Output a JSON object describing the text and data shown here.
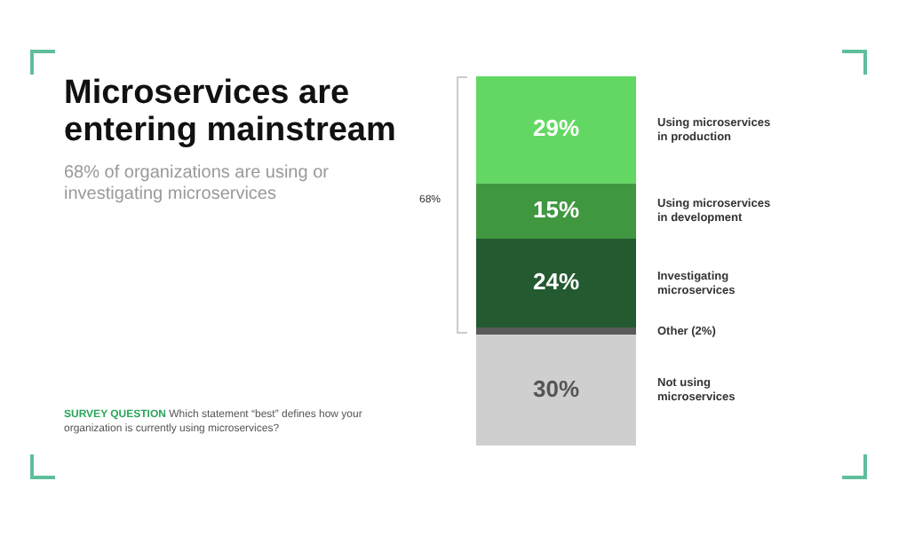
{
  "chart_data": {
    "type": "bar",
    "title": "Microservices are entering mainstream",
    "subtitle": "68% of organizations are using or investigating microservices",
    "stacked": true,
    "categories": [
      null
    ],
    "ylim": [
      0,
      100
    ],
    "tick_labels": false,
    "legend": false,
    "series": [
      {
        "name": "Not using microservices",
        "color": "#cfcfcf",
        "values": [
          30
        ],
        "value_labels": [
          "30%"
        ]
      },
      {
        "name": "Other (2%)",
        "color": "#5a5a5a",
        "values": [
          2
        ],
        "value_labels": [
          null
        ]
      },
      {
        "name": "Investigating microservices",
        "color": "#245a2f",
        "values": [
          24
        ],
        "value_labels": [
          "24%"
        ]
      },
      {
        "name": "Using microservices in development",
        "color": "#3f973f",
        "values": [
          15
        ],
        "value_labels": [
          "15%"
        ]
      },
      {
        "name": "Using microservices in production",
        "color": "#62d862",
        "values": [
          29
        ],
        "value_labels": [
          "29%"
        ]
      }
    ],
    "annotations": [
      "68%",
      "SURVEY QUESTION",
      "Which statement “best” defines how your organization is currently using microservices?"
    ]
  }
}
